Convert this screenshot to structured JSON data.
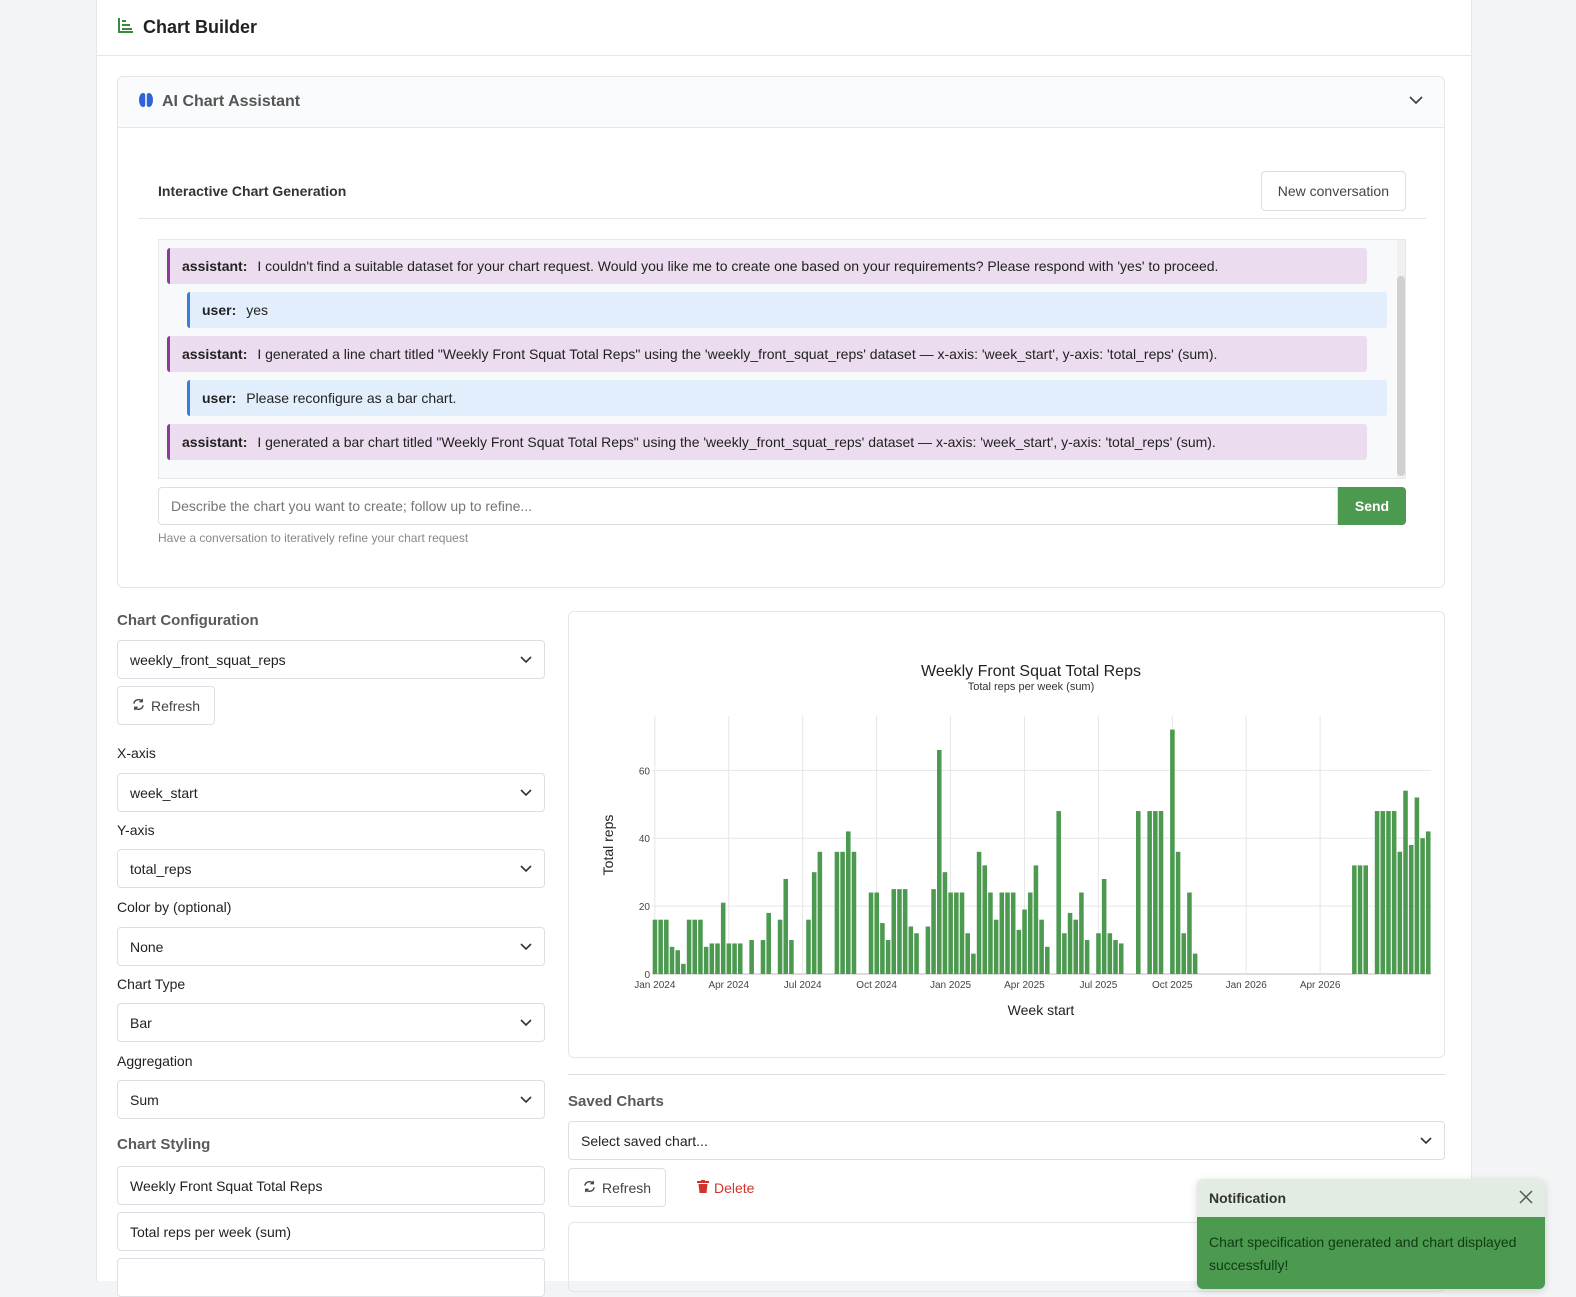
{
  "app": {
    "title": "Chart Builder"
  },
  "assistant": {
    "header": "AI Chart Assistant",
    "section_title": "Interactive Chart Generation",
    "new_conversation_label": "New conversation",
    "messages": [
      {
        "role": "assistant:",
        "text": "I couldn't find a suitable dataset for your chart request. Would you like me to create one based on your requirements? Please respond with 'yes' to proceed."
      },
      {
        "role": "user:",
        "text": "yes"
      },
      {
        "role": "assistant:",
        "text": "I generated a line chart titled \"Weekly Front Squat Total Reps\" using the 'weekly_front_squat_reps' dataset — x-axis: 'week_start', y-axis: 'total_reps' (sum)."
      },
      {
        "role": "user:",
        "text": "Please reconfigure as a bar chart."
      },
      {
        "role": "assistant:",
        "text": "I generated a bar chart titled \"Weekly Front Squat Total Reps\" using the 'weekly_front_squat_reps' dataset — x-axis: 'week_start', y-axis: 'total_reps' (sum)."
      }
    ],
    "input_placeholder": "Describe the chart you want to create; follow up to refine...",
    "send_label": "Send",
    "hint": "Have a conversation to iteratively refine your chart request"
  },
  "config": {
    "heading": "Chart Configuration",
    "dataset": "weekly_front_squat_reps",
    "refresh_label": "Refresh",
    "x_label": "X-axis",
    "x_value": "week_start",
    "y_label": "Y-axis",
    "y_value": "total_reps",
    "color_label": "Color by (optional)",
    "color_value": "None",
    "type_label": "Chart Type",
    "type_value": "Bar",
    "agg_label": "Aggregation",
    "agg_value": "Sum",
    "styling_heading": "Chart Styling",
    "title_value": "Weekly Front Squat Total Reps",
    "subtitle_value": "Total reps per week (sum)"
  },
  "saved": {
    "heading": "Saved Charts",
    "select_placeholder": "Select saved chart...",
    "refresh_label": "Refresh",
    "delete_label": "Delete"
  },
  "notification": {
    "title": "Notification",
    "message": "Chart specification generated and chart displayed successfully!"
  },
  "colors": {
    "bar": "#4b9a4f",
    "send": "#4b9a4f",
    "delete": "#d0342c",
    "assistant_bg": "#ecdcef",
    "user_bg": "#e2eefb"
  },
  "chart_data": {
    "type": "bar",
    "title": "Weekly Front Squat Total Reps",
    "subtitle": "Total reps per week (sum)",
    "xlabel": "Week start",
    "ylabel": "Total reps",
    "x_ticks": [
      "Jan 2024",
      "Apr 2024",
      "Jul 2024",
      "Oct 2024",
      "Jan 2025",
      "Apr 2025",
      "Jul 2025",
      "Oct 2025",
      "Jan 2026",
      "Apr 2026"
    ],
    "y_ticks": [
      0,
      20,
      40,
      60
    ],
    "ylim": [
      0,
      76
    ],
    "grid": true,
    "values": [
      16,
      16,
      16,
      8,
      7,
      3,
      16,
      16,
      16,
      8,
      9,
      9,
      21,
      9,
      9,
      9,
      0,
      10,
      0,
      10,
      18,
      0,
      16,
      28,
      10,
      0,
      0,
      16,
      30,
      36,
      0,
      0,
      36,
      36,
      42,
      36,
      0,
      0,
      24,
      24,
      15,
      10,
      25,
      25,
      25,
      14,
      12,
      0,
      14,
      25,
      66,
      30,
      24,
      24,
      24,
      12,
      6,
      36,
      32,
      24,
      16,
      24,
      24,
      24,
      13,
      19,
      24,
      32,
      16,
      8,
      0,
      48,
      12,
      18,
      16,
      24,
      10,
      0,
      12,
      28,
      12,
      10,
      9,
      0,
      0,
      48,
      0,
      48,
      48,
      48,
      0,
      72,
      36,
      12,
      24,
      6,
      0,
      0,
      0,
      0,
      0,
      0,
      0,
      0,
      0,
      0,
      0,
      0,
      0,
      0,
      0,
      0,
      0,
      0,
      0,
      0,
      0,
      0,
      0,
      0,
      0,
      0,
      0,
      32,
      32,
      32,
      0,
      48,
      48,
      48,
      48,
      36,
      54,
      38,
      52,
      40,
      42
    ]
  }
}
